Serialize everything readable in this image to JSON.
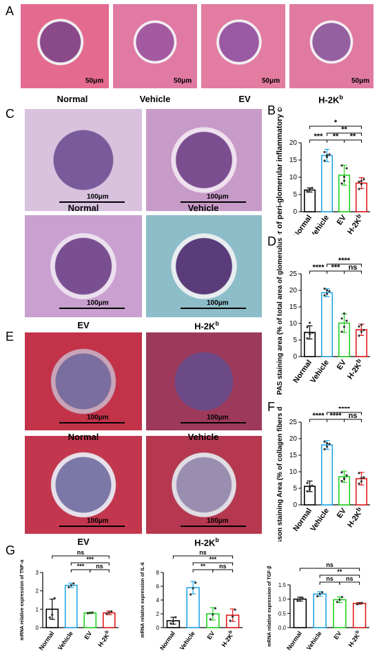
{
  "panels": {
    "A": {
      "letter": "A",
      "images": [
        "Normal",
        "Vehicle",
        "EV",
        "H-2Kb"
      ],
      "scale": "50μm"
    },
    "C": {
      "letter": "C",
      "images": [
        "Normal",
        "Vehicle",
        "EV",
        "H-2Kb"
      ],
      "scale": "100μm"
    },
    "E": {
      "letter": "E",
      "images": [
        "Normal",
        "Vehicle",
        "EV",
        "H-2Kb"
      ],
      "scale": "100μm"
    },
    "B": {
      "letter": "B"
    },
    "D": {
      "letter": "D"
    },
    "F": {
      "letter": "F"
    },
    "G": {
      "letter": "G"
    }
  },
  "labels": {
    "normal": "Normal",
    "vehicle": "Vehicle",
    "ev": "EV",
    "h2k": "H-2K",
    "h2k_sup": "b"
  },
  "colors": {
    "normal": "#000000",
    "vehicle": "#21a6e8",
    "ev": "#1fd11f",
    "h2k": "#e01818"
  },
  "chart_data": [
    {
      "id": "B",
      "type": "bar",
      "categories": [
        "Normal",
        "Vehicle",
        "EV",
        "H-2Kb"
      ],
      "values": [
        6.3,
        16.3,
        10.6,
        8.3
      ],
      "errors": [
        0.6,
        1.8,
        2.9,
        1.6
      ],
      "points": [
        [
          5.8,
          6.4,
          6.9,
          6.1,
          6.5
        ],
        [
          14.8,
          15.9,
          16.6,
          17.3,
          16.4
        ],
        [
          8.2,
          10.1,
          12.6,
          13.4,
          9.0
        ],
        [
          6.6,
          8.0,
          9.4,
          8.7,
          8.9
        ]
      ],
      "ylabel": "Number of peri-glomerular inflammatory cells",
      "ylim": [
        0,
        20
      ],
      "yticks": [
        0,
        5,
        10,
        15,
        20
      ],
      "sig": [
        {
          "from": 0,
          "to": 3,
          "label": "*"
        },
        {
          "from": 0,
          "to": 1,
          "label": "***"
        },
        {
          "from": 1,
          "to": 3,
          "label": "**"
        },
        {
          "from": 1,
          "to": 2,
          "label": "**"
        },
        {
          "from": 2,
          "to": 3,
          "label": "**"
        }
      ]
    },
    {
      "id": "D",
      "type": "bar",
      "categories": [
        "Normal",
        "Vehicle",
        "EV",
        "H-2Kb"
      ],
      "values": [
        7.3,
        19.3,
        10.1,
        8.1
      ],
      "errors": [
        2.0,
        1.2,
        2.8,
        1.7
      ],
      "points": [
        [
          5.5,
          6.8,
          7.2,
          8.9,
          10.2
        ],
        [
          18.5,
          19.0,
          19.8,
          20.5,
          20.0
        ],
        [
          7.5,
          9.0,
          10.8,
          11.5,
          13.0
        ],
        [
          6.3,
          7.5,
          8.0,
          9.1,
          9.6
        ]
      ],
      "ylabel": "PAS staining area (% of total area of glomerulus)",
      "ylim": [
        0,
        25
      ],
      "yticks": [
        0,
        5,
        10,
        15,
        20,
        25
      ],
      "sig": [
        {
          "from": 0,
          "to": 1,
          "label": "****"
        },
        {
          "from": 1,
          "to": 2,
          "label": "***"
        },
        {
          "from": 2,
          "to": 3,
          "label": "ns"
        },
        {
          "from": 1,
          "to": 3,
          "label": "****"
        }
      ]
    },
    {
      "id": "F",
      "type": "bar",
      "categories": [
        "Normal",
        "Vehicle",
        "EV",
        "H-2Kb"
      ],
      "values": [
        5.6,
        18.1,
        8.5,
        7.9
      ],
      "errors": [
        1.6,
        1.3,
        1.7,
        1.9
      ],
      "points": [
        [
          4.1,
          5.2,
          5.8,
          6.6,
          4.6
        ],
        [
          16.8,
          17.6,
          18.4,
          19.1,
          18.6
        ],
        [
          7.2,
          8.0,
          8.9,
          9.8,
          7.8
        ],
        [
          6.4,
          7.1,
          8.3,
          9.6,
          8.1
        ]
      ],
      "ylabel": "Masson staining Area (% of collagen fibers deposition)",
      "ylim": [
        0,
        25
      ],
      "yticks": [
        0,
        5,
        10,
        15,
        20,
        25
      ],
      "sig": [
        {
          "from": 0,
          "to": 1,
          "label": "****"
        },
        {
          "from": 1,
          "to": 2,
          "label": "****"
        },
        {
          "from": 2,
          "to": 3,
          "label": "ns"
        },
        {
          "from": 1,
          "to": 3,
          "label": "****"
        }
      ]
    },
    {
      "id": "G1",
      "type": "bar",
      "categories": [
        "Normal",
        "Vehicle",
        "EV",
        "H-2Kb"
      ],
      "values": [
        1.0,
        2.3,
        0.8,
        0.8
      ],
      "errors": [
        0.55,
        0.12,
        0.04,
        0.1
      ],
      "points": [
        [
          0.55,
          0.7,
          1.6
        ],
        [
          2.2,
          2.3,
          2.4
        ],
        [
          0.78,
          0.8,
          0.82
        ],
        [
          0.75,
          0.82,
          0.88
        ]
      ],
      "ylabel": "mRNA relative expression of TNF-α",
      "ylim": [
        0,
        3
      ],
      "yticks": [
        0,
        1,
        2,
        3
      ],
      "sig": [
        {
          "from": 0,
          "to": 3,
          "label": "ns"
        },
        {
          "from": 1,
          "to": 3,
          "label": "***"
        },
        {
          "from": 1,
          "to": 2,
          "label": "***"
        },
        {
          "from": 2,
          "to": 3,
          "label": "ns"
        }
      ]
    },
    {
      "id": "G2",
      "type": "bar",
      "categories": [
        "Normal",
        "Vehicle",
        "EV",
        "H-2Kb"
      ],
      "values": [
        1.0,
        5.8,
        2.0,
        1.8
      ],
      "errors": [
        0.5,
        0.9,
        0.9,
        0.9
      ],
      "points": [
        [
          0.6,
          0.9,
          1.5
        ],
        [
          4.8,
          5.7,
          6.5
        ],
        [
          1.2,
          1.9,
          2.8
        ],
        [
          1.0,
          1.6,
          2.6
        ]
      ],
      "ylabel": "mRNA relative expression of IL-6",
      "ylim": [
        0,
        8
      ],
      "yticks": [
        0,
        2,
        4,
        6,
        8
      ],
      "sig": [
        {
          "from": 0,
          "to": 3,
          "label": "ns"
        },
        {
          "from": 1,
          "to": 3,
          "label": "***"
        },
        {
          "from": 1,
          "to": 2,
          "label": "**"
        },
        {
          "from": 2,
          "to": 3,
          "label": "ns"
        }
      ]
    },
    {
      "id": "G3",
      "type": "bar",
      "categories": [
        "Normal",
        "Vehicle",
        "EV",
        "H-2Kb"
      ],
      "values": [
        1.0,
        1.18,
        0.98,
        0.85
      ],
      "errors": [
        0.07,
        0.08,
        0.1,
        0.03
      ],
      "points": [
        [
          0.94,
          1.0,
          1.05
        ],
        [
          1.1,
          1.18,
          1.24
        ],
        [
          0.9,
          0.98,
          1.07
        ],
        [
          0.82,
          0.85,
          0.87
        ]
      ],
      "ylabel": "mRNA relative expression of TGF-β",
      "ylim": [
        0,
        1.5
      ],
      "yticks": [
        0.0,
        0.5,
        1.0,
        1.5
      ],
      "sig": [
        {
          "from": 0,
          "to": 3,
          "label": "ns"
        },
        {
          "from": 1,
          "to": 3,
          "label": "**"
        },
        {
          "from": 1,
          "to": 2,
          "label": "ns"
        },
        {
          "from": 2,
          "to": 3,
          "label": "ns"
        }
      ]
    }
  ]
}
